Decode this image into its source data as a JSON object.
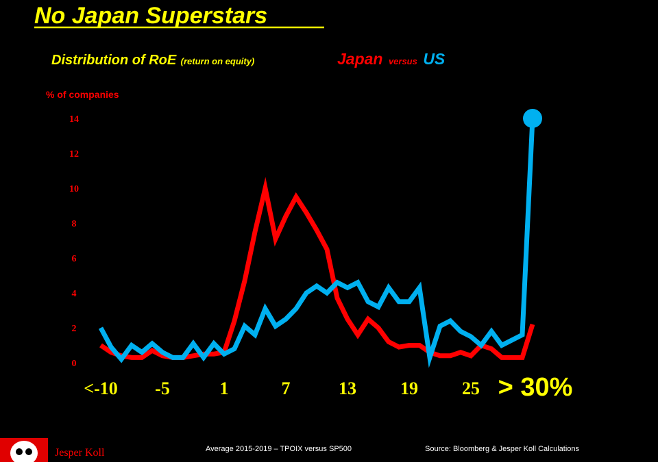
{
  "chart_data": {
    "type": "line",
    "title": "No Japan Superstars",
    "subtitle": {
      "main": "Distribution of RoE",
      "note": "(return on equity)"
    },
    "legend_separator": "versus",
    "ylabel": "% of companies",
    "categories": [
      "<-10",
      null,
      null,
      null,
      null,
      null,
      "-5",
      null,
      null,
      null,
      null,
      null,
      "1",
      null,
      null,
      null,
      null,
      null,
      "7",
      null,
      null,
      null,
      null,
      null,
      "13",
      null,
      null,
      null,
      null,
      null,
      "19",
      null,
      null,
      null,
      null,
      null,
      "25",
      null,
      null,
      null,
      null,
      null,
      "> 30%"
    ],
    "series": [
      {
        "name": "Japan",
        "color": "#ff0000",
        "values": [
          1.0,
          0.6,
          0.4,
          0.3,
          0.3,
          0.7,
          0.4,
          0.3,
          0.3,
          0.4,
          0.5,
          0.5,
          0.6,
          2.4,
          4.7,
          7.5,
          10.0,
          7.1,
          8.4,
          9.5,
          8.6,
          7.6,
          6.5,
          3.7,
          2.5,
          1.6,
          2.5,
          2.0,
          1.2,
          0.9,
          1.0,
          1.0,
          0.6,
          0.4,
          0.4,
          0.6,
          0.4,
          1.0,
          0.8,
          0.3,
          0.3,
          0.3,
          2.2
        ]
      },
      {
        "name": "US",
        "color": "#00b0f0",
        "values": [
          2.0,
          0.9,
          0.2,
          1.0,
          0.6,
          1.1,
          0.6,
          0.3,
          0.3,
          1.1,
          0.3,
          1.1,
          0.5,
          0.8,
          2.1,
          1.6,
          3.1,
          2.1,
          2.5,
          3.1,
          4.0,
          4.4,
          4.0,
          4.6,
          4.3,
          4.6,
          3.5,
          3.2,
          4.3,
          3.5,
          3.5,
          4.3,
          0.3,
          2.1,
          2.4,
          1.8,
          1.5,
          1.0,
          1.8,
          1.0,
          1.3,
          1.6,
          14.0
        ]
      }
    ],
    "ylim": [
      0,
      14
    ],
    "yticks": [
      0,
      2,
      4,
      6,
      8,
      10,
      12,
      14
    ],
    "grid": false
  },
  "footer": {
    "author": "Jesper Koll",
    "note": "Average 2015-2019 – TPOIX versus SP500",
    "source": "Source: Bloomberg & Jesper Koll Calculations"
  }
}
